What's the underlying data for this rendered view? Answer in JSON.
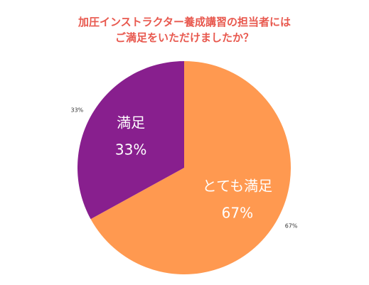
{
  "title": {
    "line1": "加圧インストラクター養成講習の担当者には",
    "line2": "ご満足をいただけましたか？"
  },
  "chart_data": {
    "type": "pie",
    "title": "加圧インストラクター養成講習の担当者にはご満足をいただけましたか？",
    "slices": [
      {
        "label": "とても満足",
        "value": 67,
        "value_label": "67%",
        "outer_label": "67%",
        "color": "#ff9950"
      },
      {
        "label": "満足",
        "value": 33,
        "value_label": "33%",
        "outer_label": "33%",
        "color": "#881f8e"
      }
    ],
    "start": "12 o'clock",
    "direction": "clockwise",
    "legend": "none"
  }
}
